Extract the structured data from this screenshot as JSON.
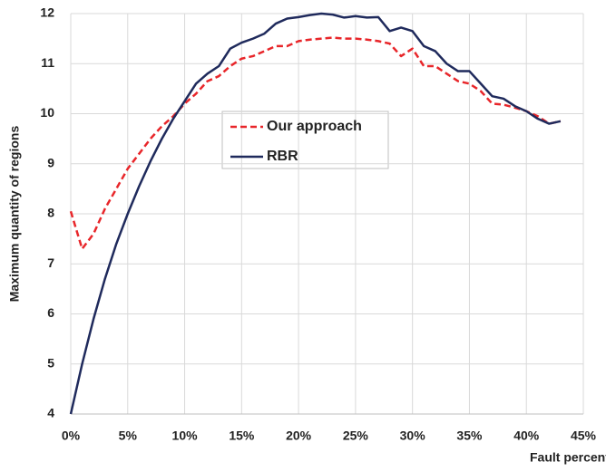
{
  "chart_data": {
    "type": "line",
    "xlabel": "Fault percentage",
    "ylabel": "Maximum quantity of regions",
    "x": [
      0,
      1,
      2,
      3,
      4,
      5,
      6,
      7,
      8,
      9,
      10,
      11,
      12,
      13,
      14,
      15,
      16,
      17,
      18,
      19,
      20,
      21,
      22,
      23,
      24,
      25,
      26,
      27,
      28,
      29,
      30,
      31,
      32,
      33,
      34,
      35,
      36,
      37,
      38,
      39,
      40,
      41,
      42,
      43
    ],
    "series": [
      {
        "name": "Our approach",
        "color": "#e8262a",
        "dashed": true,
        "values": [
          8.05,
          7.3,
          7.6,
          8.1,
          8.5,
          8.9,
          9.2,
          9.5,
          9.75,
          9.95,
          10.2,
          10.4,
          10.65,
          10.75,
          10.95,
          11.1,
          11.15,
          11.25,
          11.35,
          11.35,
          11.45,
          11.48,
          11.5,
          11.52,
          11.5,
          11.5,
          11.48,
          11.45,
          11.4,
          11.15,
          11.3,
          10.95,
          10.95,
          10.8,
          10.65,
          10.6,
          10.45,
          10.2,
          10.18,
          10.12,
          10.05,
          9.95,
          9.8,
          9.85
        ]
      },
      {
        "name": "RBR",
        "color": "#1f2a5c",
        "dashed": false,
        "values": [
          4.0,
          5.0,
          5.9,
          6.7,
          7.4,
          8.0,
          8.55,
          9.05,
          9.5,
          9.9,
          10.25,
          10.6,
          10.8,
          10.95,
          11.3,
          11.42,
          11.5,
          11.6,
          11.8,
          11.9,
          11.93,
          11.97,
          12.0,
          11.98,
          11.92,
          11.95,
          11.92,
          11.93,
          11.65,
          11.72,
          11.65,
          11.35,
          11.25,
          11.0,
          10.85,
          10.85,
          10.6,
          10.35,
          10.3,
          10.15,
          10.05,
          9.9,
          9.8,
          9.85
        ]
      }
    ],
    "xlim": [
      0,
      45
    ],
    "xticks": [
      {
        "value": 0,
        "label": "0%"
      },
      {
        "value": 5,
        "label": "5%"
      },
      {
        "value": 10,
        "label": "10%"
      },
      {
        "value": 15,
        "label": "15%"
      },
      {
        "value": 20,
        "label": "20%"
      },
      {
        "value": 25,
        "label": "25%"
      },
      {
        "value": 30,
        "label": "30%"
      },
      {
        "value": 35,
        "label": "35%"
      },
      {
        "value": 40,
        "label": "40%"
      },
      {
        "value": 45,
        "label": "45%"
      }
    ],
    "ylim": [
      4,
      12
    ],
    "yticks": [
      4,
      5,
      6,
      7,
      8,
      9,
      10,
      11,
      12
    ],
    "grid": true
  }
}
